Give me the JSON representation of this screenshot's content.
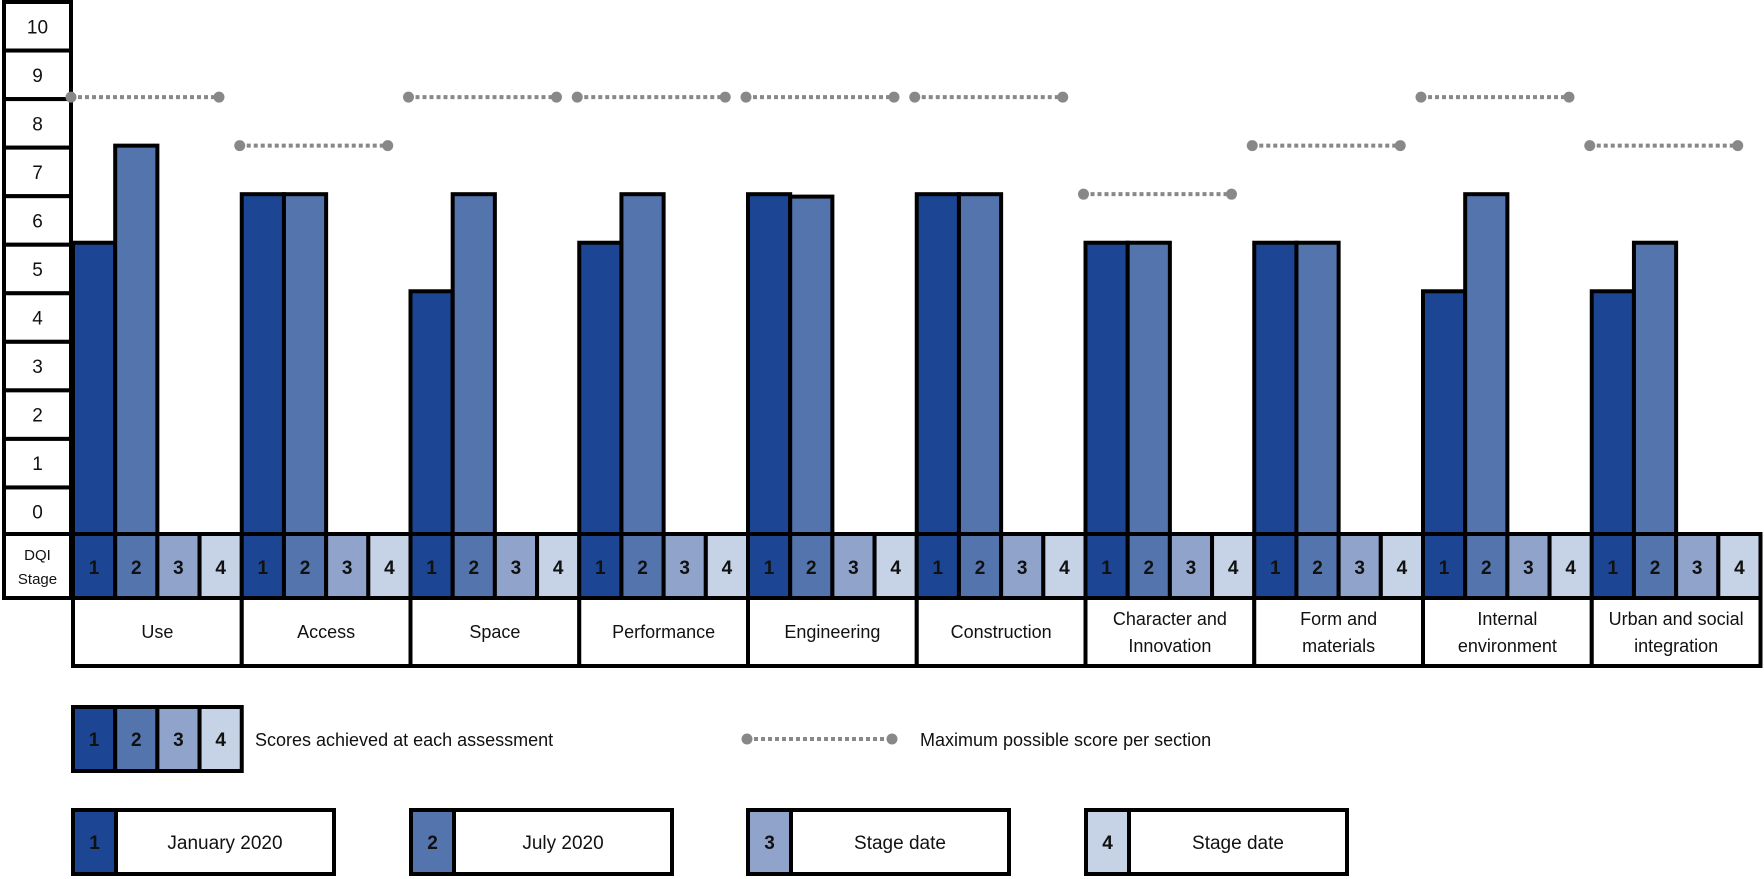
{
  "chart_data": {
    "type": "bar",
    "y_axis_header": [
      "DQI",
      "Stage"
    ],
    "y_ticks": [
      "10",
      "9",
      "8",
      "7",
      "6",
      "5",
      "4",
      "3",
      "2",
      "1",
      "0"
    ],
    "ylim": [
      0,
      10
    ],
    "grid": false,
    "stages": [
      "1",
      "2",
      "3",
      "4"
    ],
    "categories": [
      "Use",
      "Access",
      "Space",
      "Performance",
      "Engineering",
      "Construction",
      "Character and Innovation",
      "Form and materials",
      "Internal environment",
      "Urban and social integration"
    ],
    "category_lines": [
      [
        "Use"
      ],
      [
        "Access"
      ],
      [
        "Space"
      ],
      [
        "Performance"
      ],
      [
        "Engineering"
      ],
      [
        "Construction"
      ],
      [
        "Character and",
        "Innovation"
      ],
      [
        "Form and",
        "materials"
      ],
      [
        "Internal",
        "environment"
      ],
      [
        "Urban and social",
        "integration"
      ]
    ],
    "series": [
      {
        "name": "January 2020",
        "stage": "1",
        "color": "#1c4694",
        "values": [
          5,
          6,
          4,
          5,
          6,
          6,
          5,
          5,
          4,
          4
        ]
      },
      {
        "name": "July 2020",
        "stage": "2",
        "color": "#5474ad",
        "values": [
          7,
          6,
          6,
          6,
          5.95,
          6,
          5,
          5,
          6,
          5
        ]
      },
      {
        "name": "Stage date",
        "stage": "3",
        "color": "#8fa3cb",
        "values": [
          null,
          null,
          null,
          null,
          null,
          null,
          null,
          null,
          null,
          null
        ]
      },
      {
        "name": "Stage date",
        "stage": "4",
        "color": "#c6d2e5",
        "values": [
          null,
          null,
          null,
          null,
          null,
          null,
          null,
          null,
          null,
          null
        ]
      }
    ],
    "max_score": [
      8,
      7,
      8,
      8,
      8,
      8,
      6,
      7,
      8,
      7
    ],
    "max_color": "#888888",
    "legend": {
      "scores_label": "Scores achieved at each assessment",
      "max_label": "Maximum possible score per section",
      "stage_dates": [
        {
          "stage": "1",
          "label": "January 2020"
        },
        {
          "stage": "2",
          "label": "July 2020"
        },
        {
          "stage": "3",
          "label": "Stage date"
        },
        {
          "stage": "4",
          "label": "Stage date"
        }
      ]
    }
  }
}
